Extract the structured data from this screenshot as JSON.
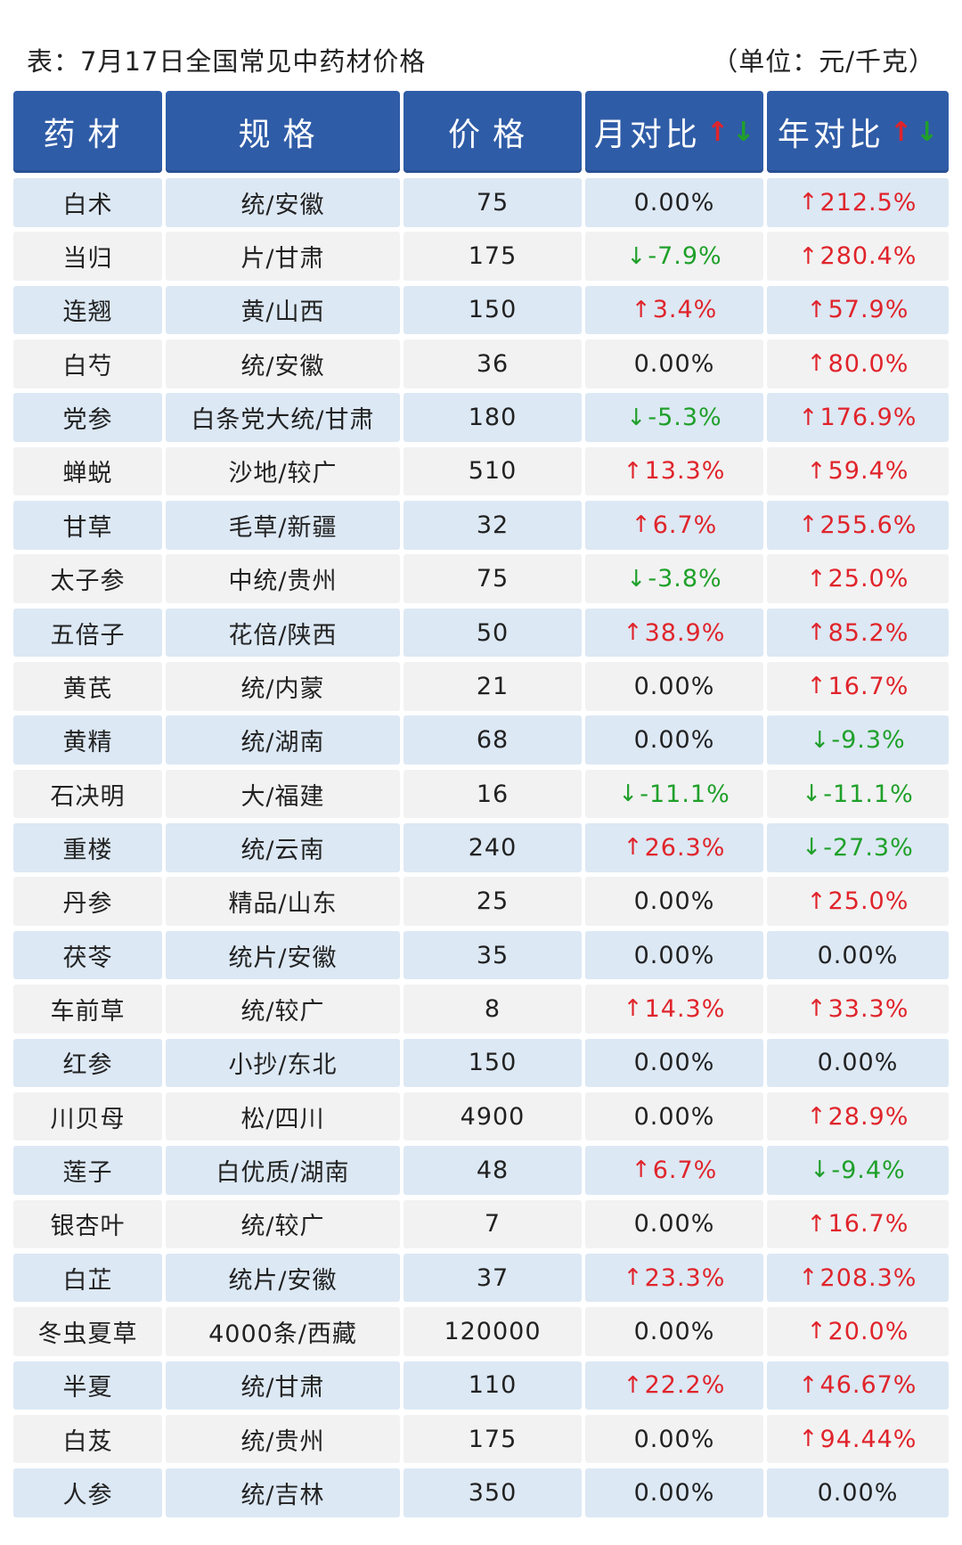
{
  "caption": {
    "title": "表：7月17日全国常见中药材价格",
    "unit": "（单位：元/千克）"
  },
  "colors": {
    "header_bg": "#2f5ca7",
    "row_odd": "#dce8f4",
    "row_even": "#f2f2f2",
    "up": "#e0242b",
    "down": "#1fa02a"
  },
  "headers": [
    "药材",
    "规格",
    "价格",
    "月对比",
    "年对比"
  ],
  "header_icons": {
    "up": "↑",
    "down": "↓"
  },
  "rows": [
    {
      "name": "白术",
      "spec": "统/安徽",
      "price": "75",
      "mom": {
        "dir": "flat",
        "text": "0.00%"
      },
      "yoy": {
        "dir": "up",
        "text": "212.5%"
      }
    },
    {
      "name": "当归",
      "spec": "片/甘肃",
      "price": "175",
      "mom": {
        "dir": "down",
        "text": "-7.9%"
      },
      "yoy": {
        "dir": "up",
        "text": "280.4%"
      }
    },
    {
      "name": "连翘",
      "spec": "黄/山西",
      "price": "150",
      "mom": {
        "dir": "up",
        "text": "3.4%"
      },
      "yoy": {
        "dir": "up",
        "text": "57.9%"
      }
    },
    {
      "name": "白芍",
      "spec": "统/安徽",
      "price": "36",
      "mom": {
        "dir": "flat",
        "text": "0.00%"
      },
      "yoy": {
        "dir": "up",
        "text": "80.0%"
      }
    },
    {
      "name": "党参",
      "spec": "白条党大统/甘肃",
      "price": "180",
      "mom": {
        "dir": "down",
        "text": "-5.3%"
      },
      "yoy": {
        "dir": "up",
        "text": "176.9%"
      }
    },
    {
      "name": "蝉蜕",
      "spec": "沙地/较广",
      "price": "510",
      "mom": {
        "dir": "up",
        "text": "13.3%"
      },
      "yoy": {
        "dir": "up",
        "text": "59.4%"
      }
    },
    {
      "name": "甘草",
      "spec": "毛草/新疆",
      "price": "32",
      "mom": {
        "dir": "up",
        "text": "6.7%"
      },
      "yoy": {
        "dir": "up",
        "text": "255.6%"
      }
    },
    {
      "name": "太子参",
      "spec": "中统/贵州",
      "price": "75",
      "mom": {
        "dir": "down",
        "text": "-3.8%"
      },
      "yoy": {
        "dir": "up",
        "text": "25.0%"
      }
    },
    {
      "name": "五倍子",
      "spec": "花倍/陕西",
      "price": "50",
      "mom": {
        "dir": "up",
        "text": "38.9%"
      },
      "yoy": {
        "dir": "up",
        "text": "85.2%"
      }
    },
    {
      "name": "黄芪",
      "spec": "统/内蒙",
      "price": "21",
      "mom": {
        "dir": "flat",
        "text": "0.00%"
      },
      "yoy": {
        "dir": "up",
        "text": "16.7%"
      }
    },
    {
      "name": "黄精",
      "spec": "统/湖南",
      "price": "68",
      "mom": {
        "dir": "flat",
        "text": "0.00%"
      },
      "yoy": {
        "dir": "down",
        "text": "-9.3%"
      }
    },
    {
      "name": "石决明",
      "spec": "大/福建",
      "price": "16",
      "mom": {
        "dir": "down",
        "text": "-11.1%"
      },
      "yoy": {
        "dir": "down",
        "text": "-11.1%"
      }
    },
    {
      "name": "重楼",
      "spec": "统/云南",
      "price": "240",
      "mom": {
        "dir": "up",
        "text": "26.3%"
      },
      "yoy": {
        "dir": "down",
        "text": "-27.3%"
      }
    },
    {
      "name": "丹参",
      "spec": "精品/山东",
      "price": "25",
      "mom": {
        "dir": "flat",
        "text": "0.00%"
      },
      "yoy": {
        "dir": "up",
        "text": "25.0%"
      }
    },
    {
      "name": "茯苓",
      "spec": "统片/安徽",
      "price": "35",
      "mom": {
        "dir": "flat",
        "text": "0.00%"
      },
      "yoy": {
        "dir": "flat",
        "text": "0.00%"
      }
    },
    {
      "name": "车前草",
      "spec": "统/较广",
      "price": "8",
      "mom": {
        "dir": "up",
        "text": "14.3%"
      },
      "yoy": {
        "dir": "up",
        "text": "33.3%"
      }
    },
    {
      "name": "红参",
      "spec": "小抄/东北",
      "price": "150",
      "mom": {
        "dir": "flat",
        "text": "0.00%"
      },
      "yoy": {
        "dir": "flat",
        "text": "0.00%"
      }
    },
    {
      "name": "川贝母",
      "spec": "松/四川",
      "price": "4900",
      "mom": {
        "dir": "flat",
        "text": "0.00%"
      },
      "yoy": {
        "dir": "up",
        "text": "28.9%"
      }
    },
    {
      "name": "莲子",
      "spec": "白优质/湖南",
      "price": "48",
      "mom": {
        "dir": "up",
        "text": "6.7%"
      },
      "yoy": {
        "dir": "down",
        "text": "-9.4%"
      }
    },
    {
      "name": "银杏叶",
      "spec": "统/较广",
      "price": "7",
      "mom": {
        "dir": "flat",
        "text": "0.00%"
      },
      "yoy": {
        "dir": "up",
        "text": "16.7%"
      }
    },
    {
      "name": "白芷",
      "spec": "统片/安徽",
      "price": "37",
      "mom": {
        "dir": "up",
        "text": "23.3%"
      },
      "yoy": {
        "dir": "up",
        "text": "208.3%"
      }
    },
    {
      "name": "冬虫夏草",
      "spec": "4000条/西藏",
      "price": "120000",
      "mom": {
        "dir": "flat",
        "text": "0.00%"
      },
      "yoy": {
        "dir": "up",
        "text": "20.0%"
      }
    },
    {
      "name": "半夏",
      "spec": "统/甘肃",
      "price": "110",
      "mom": {
        "dir": "up",
        "text": "22.2%"
      },
      "yoy": {
        "dir": "up",
        "text": "46.67%"
      }
    },
    {
      "name": "白芨",
      "spec": "统/贵州",
      "price": "175",
      "mom": {
        "dir": "flat",
        "text": "0.00%"
      },
      "yoy": {
        "dir": "up",
        "text": "94.44%"
      }
    },
    {
      "name": "人参",
      "spec": "统/吉林",
      "price": "350",
      "mom": {
        "dir": "flat",
        "text": "0.00%"
      },
      "yoy": {
        "dir": "flat",
        "text": "0.00%"
      }
    }
  ]
}
